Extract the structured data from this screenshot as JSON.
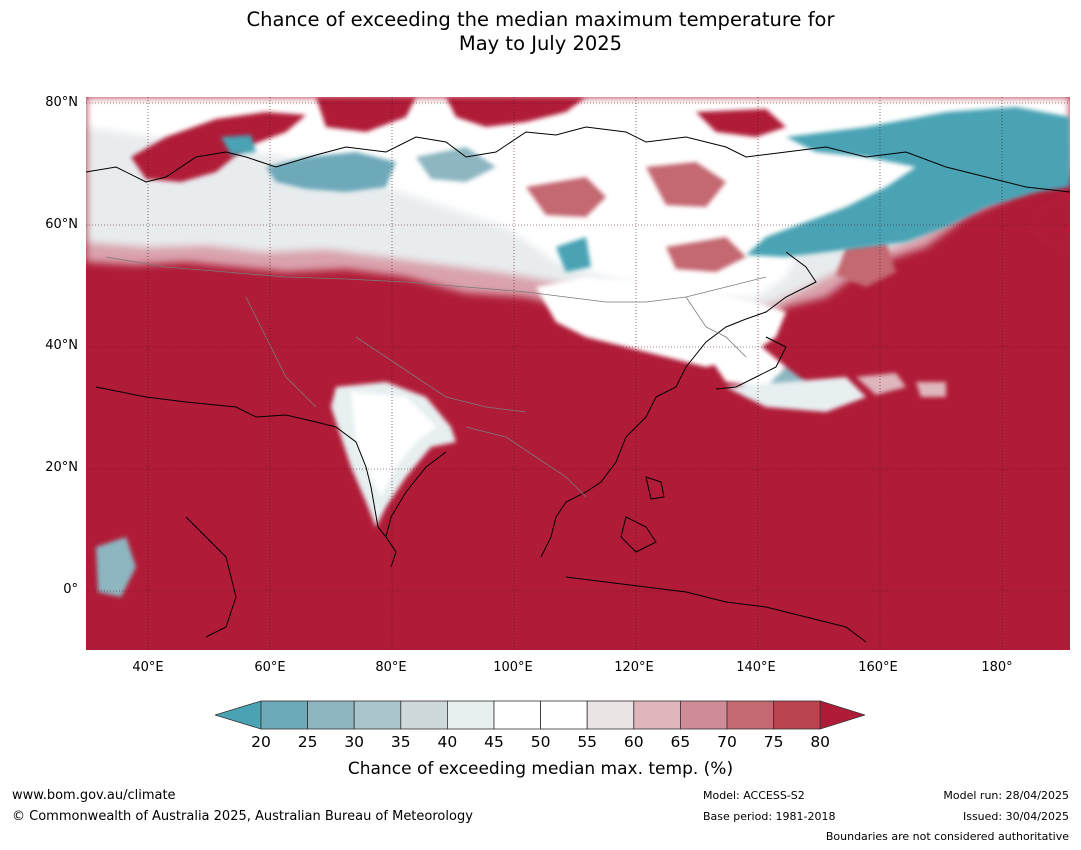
{
  "title": {
    "line1": "Chance of exceeding the median maximum temperature for",
    "line2": "May to July 2025"
  },
  "map": {
    "lat_labels": [
      "80°N",
      "60°N",
      "40°N",
      "20°N",
      "0°"
    ],
    "lon_labels": [
      "40°E",
      "60°E",
      "80°E",
      "100°E",
      "120°E",
      "140°E",
      "160°E",
      "180°"
    ],
    "colors": {
      "ocean_red": "#b01c38",
      "teal": "#4aa3b4",
      "white": "#ffffff",
      "coast": "#000000",
      "border": "#7a7a7a"
    }
  },
  "colorbar": {
    "ticks": [
      "20",
      "25",
      "30",
      "35",
      "40",
      "45",
      "50",
      "55",
      "60",
      "65",
      "70",
      "75",
      "80"
    ],
    "colors": [
      "#4aa3b4",
      "#6ea9b9",
      "#8db6c1",
      "#aac5cb",
      "#ced9dc",
      "#e7eff1",
      "#ffffff",
      "#ffffff",
      "#ebe4e5",
      "#dfb6bc",
      "#d08c96",
      "#c46871",
      "#b9434f",
      "#b01c38"
    ],
    "label": "Chance of exceeding median max. temp. (%)"
  },
  "footer": {
    "website": "www.bom.gov.au/climate",
    "copyright": "© Commonwealth of Australia 2025, Australian Bureau of Meteorology",
    "model": "Model: ACCESS-S2",
    "base_period": "Base period: 1981-2018",
    "model_run": "Model run: 28/04/2025",
    "issued": "Issued: 30/04/2025",
    "disclaimer": "Boundaries are not considered authoritative"
  }
}
